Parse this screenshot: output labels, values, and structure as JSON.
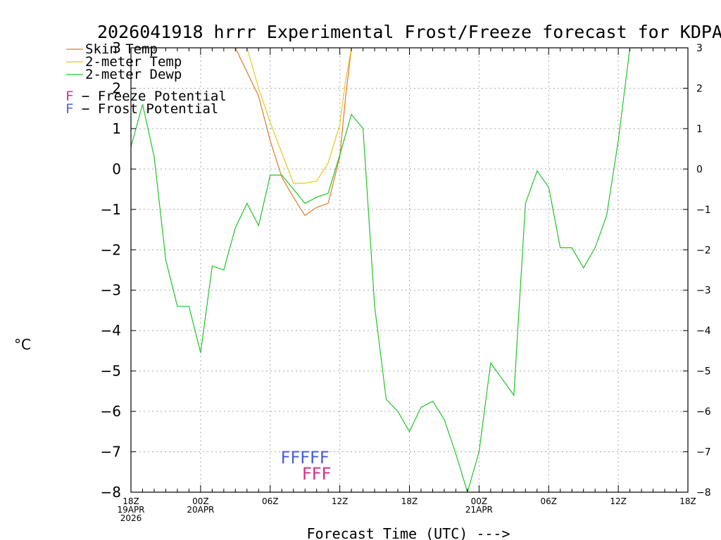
{
  "chart_data": {
    "type": "line",
    "title": "2026041918 hrrr Experimental Frost/Freeze forecast for KDPA",
    "ylabel": "°C",
    "xlabel": "Forecast Time (UTC) --->",
    "ylim": [
      -8,
      3
    ],
    "xlim": [
      0,
      48
    ],
    "yticks": [
      3,
      2,
      1,
      0,
      -1,
      -2,
      -3,
      -4,
      -5,
      -6,
      -7,
      -8
    ],
    "yticks_left": [
      "3",
      "2",
      "1",
      "0",
      "−1",
      "−2",
      "−3",
      "−4",
      "−5",
      "−6",
      "−7",
      "−8"
    ],
    "xticks": [
      {
        "hour": 0,
        "lines": [
          "18Z",
          "19APR",
          "2026"
        ]
      },
      {
        "hour": 6,
        "lines": [
          "00Z",
          "20APR"
        ]
      },
      {
        "hour": 12,
        "lines": [
          "06Z"
        ]
      },
      {
        "hour": 18,
        "lines": [
          "12Z"
        ]
      },
      {
        "hour": 24,
        "lines": [
          "18Z"
        ]
      },
      {
        "hour": 30,
        "lines": [
          "00Z",
          "21APR"
        ]
      },
      {
        "hour": 36,
        "lines": [
          "06Z"
        ]
      },
      {
        "hour": 42,
        "lines": [
          "12Z"
        ]
      },
      {
        "hour": 48,
        "lines": [
          "18Z"
        ]
      }
    ],
    "grid": true,
    "series": [
      {
        "name": "Skin Temp",
        "color": "#e07a2a",
        "x": [
          9,
          10,
          11,
          12,
          13,
          14,
          15,
          16,
          17,
          18,
          18.5,
          19
        ],
        "y": [
          3,
          2.4,
          1.8,
          0.7,
          -0.2,
          -0.7,
          -1.15,
          -0.95,
          -0.85,
          0.3,
          1.8,
          3
        ]
      },
      {
        "name": "2-meter Temp",
        "color": "#e8c81f",
        "x": [
          10,
          11,
          12,
          13,
          14,
          15,
          16,
          17,
          18,
          18.5,
          19
        ],
        "y": [
          3,
          2.0,
          1.15,
          0.4,
          -0.35,
          -0.35,
          -0.3,
          0.15,
          1.1,
          2.2,
          3
        ]
      },
      {
        "name": "2-meter Dewp",
        "color": "#22c42a",
        "x": [
          0,
          1,
          2,
          3,
          4,
          5,
          6,
          7,
          8,
          9,
          10,
          11,
          12,
          13,
          14,
          15,
          16,
          17,
          18,
          19,
          20,
          21,
          22,
          23,
          24,
          25,
          26,
          27,
          28,
          29,
          30,
          31,
          32,
          33,
          34,
          35,
          36,
          37,
          38,
          39,
          40,
          41,
          42,
          43,
          44
        ],
        "y": [
          0.55,
          1.6,
          0.3,
          -2.25,
          -3.4,
          -3.4,
          -4.55,
          -2.4,
          -2.5,
          -1.45,
          -0.85,
          -1.4,
          -0.15,
          -0.15,
          -0.5,
          -0.85,
          -0.7,
          -0.6,
          0.35,
          1.35,
          1.0,
          -3.4,
          -5.7,
          -6.0,
          -6.5,
          -5.9,
          -5.75,
          -6.2,
          -7.05,
          -8.0,
          -7.0,
          -4.8,
          -5.2,
          -5.6,
          -0.85,
          -0.05,
          -0.45,
          -1.95,
          -1.95,
          -2.45,
          -1.95,
          -1.15,
          0.7,
          3.0,
          3.0
        ]
      }
    ],
    "legend": {
      "position": "top-left",
      "entries": [
        "Skin Temp",
        "2-meter Temp",
        "2-meter Dewp"
      ]
    },
    "potential_legend": [
      {
        "letter": "F",
        "text": " − Freeze Potential",
        "color": "#d6308e"
      },
      {
        "letter": "F",
        "text": " − Frost Potential",
        "color": "#4a5fd6"
      }
    ],
    "flags": {
      "frost": {
        "text": "FFFFF",
        "color": "#4a5fd6",
        "hours": [
          13,
          14,
          15,
          16,
          17
        ]
      },
      "freeze": {
        "text": "FFF",
        "color": "#d6308e",
        "hours": [
          15,
          16,
          17
        ]
      }
    }
  }
}
